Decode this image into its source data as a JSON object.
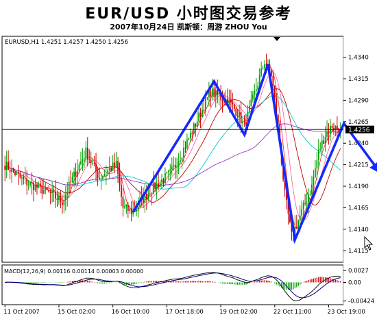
{
  "header": {
    "title": "EUR/USD 小时图交易参考",
    "subtitle": "2007年10月24日   凯斯顿：周游 ZHOU You"
  },
  "chart_data": {
    "type": "candlestick",
    "symbol_info": "EURUSD,H1  1.4251 1.4257 1.4250 1.4256",
    "price_axis": {
      "ylim": [
        1.4104,
        1.4362
      ],
      "ticks": [
        "1.4340",
        "1.4315",
        "1.4290",
        "1.4265",
        "1.4240",
        "1.4215",
        "1.4190",
        "1.4165",
        "1.4140",
        "1.4115"
      ],
      "tick_values": [
        1.434,
        1.4315,
        1.429,
        1.4265,
        1.424,
        1.4215,
        1.419,
        1.4165,
        1.414,
        1.4115
      ],
      "current_price_label": "1.4256",
      "current_price": 1.4256
    },
    "time_axis": {
      "labels": [
        "11 Oct 2007",
        "15 Oct 02:00",
        "16 Oct 10:00",
        "17 Oct 18:00",
        "19 Oct 02:00",
        "22 Oct 11:00",
        "23 Oct 19:00"
      ],
      "label_bar_index": [
        0,
        32,
        64,
        96,
        128,
        160,
        192
      ],
      "bar_count": 200
    },
    "price_path": [
      [
        0,
        1.4215
      ],
      [
        6,
        1.4205
      ],
      [
        12,
        1.4195
      ],
      [
        20,
        1.4188
      ],
      [
        28,
        1.418
      ],
      [
        34,
        1.4172
      ],
      [
        38,
        1.419
      ],
      [
        44,
        1.4215
      ],
      [
        48,
        1.423
      ],
      [
        52,
        1.4215
      ],
      [
        56,
        1.42
      ],
      [
        62,
        1.421
      ],
      [
        66,
        1.4215
      ],
      [
        70,
        1.4165
      ],
      [
        76,
        1.416
      ],
      [
        80,
        1.417
      ],
      [
        86,
        1.4185
      ],
      [
        92,
        1.4195
      ],
      [
        98,
        1.4205
      ],
      [
        104,
        1.4225
      ],
      [
        110,
        1.425
      ],
      [
        116,
        1.4275
      ],
      [
        122,
        1.43
      ],
      [
        126,
        1.4295
      ],
      [
        132,
        1.429
      ],
      [
        138,
        1.4275
      ],
      [
        142,
        1.426
      ],
      [
        146,
        1.4285
      ],
      [
        150,
        1.431
      ],
      [
        154,
        1.4335
      ],
      [
        158,
        1.432
      ],
      [
        162,
        1.426
      ],
      [
        166,
        1.418
      ],
      [
        170,
        1.4132
      ],
      [
        174,
        1.415
      ],
      [
        178,
        1.417
      ],
      [
        182,
        1.419
      ],
      [
        186,
        1.423
      ],
      [
        190,
        1.425
      ],
      [
        194,
        1.426
      ],
      [
        199,
        1.4256
      ]
    ],
    "analysis_path": [
      [
        76,
        1.416
      ],
      [
        124,
        1.4312
      ],
      [
        142,
        1.425
      ],
      [
        156,
        1.4332
      ],
      [
        172,
        1.4128
      ],
      [
        201,
        1.4263
      ],
      [
        222,
        1.4207
      ]
    ],
    "analysis_color": "#1428ff",
    "moving_averages": [
      {
        "color": "#ff3030",
        "period": 5
      },
      {
        "color": "#ff66aa",
        "period": 10
      },
      {
        "color": "#c00000",
        "period": 20
      },
      {
        "color": "#00c8c8",
        "period": 40
      },
      {
        "color": "#9b30d0",
        "period": 80
      }
    ],
    "bull_color": "#00a000",
    "bear_color": "#d00000",
    "macd": {
      "label": "MACD(12,26,9) 0.00116 0.00114 0.00003 0.00000",
      "ticks": [
        "0.0027",
        "0.00",
        "-0.00424"
      ],
      "tick_values": [
        0.0027,
        0.0,
        -0.00424
      ],
      "ylim": [
        -0.0046,
        0.0035
      ],
      "histogram_color": "#d00000",
      "negative_color": "#00a000",
      "signal_color": "#000080",
      "line_color": "#101010"
    }
  }
}
